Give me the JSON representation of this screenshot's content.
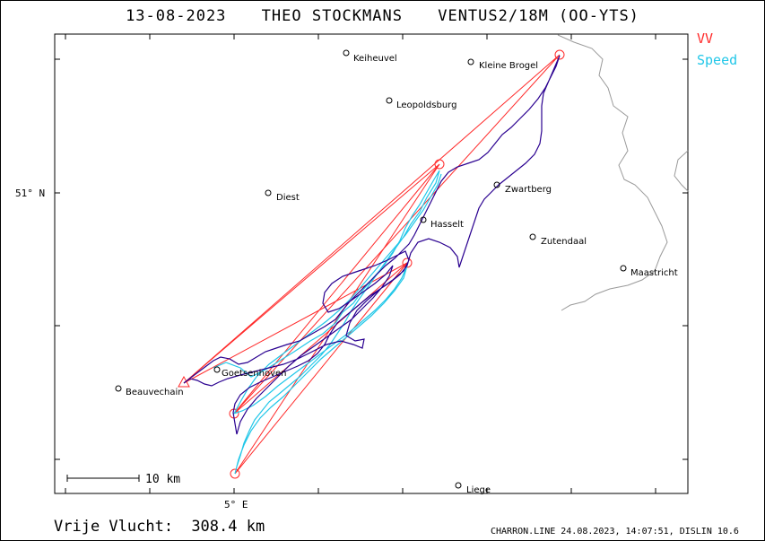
{
  "header": {
    "date": "13-08-2023",
    "pilot": "THEO STOCKMANS",
    "glider": "VENTUS2/18M (OO-YTS)"
  },
  "legend": {
    "vv_label": "VV",
    "vv_color": "#ff2a2a",
    "speed_label": "Speed",
    "speed_color": "#22c7e8",
    "track_color": "#2a0090"
  },
  "map": {
    "lat_label": "51° N",
    "lon_label": "5° E",
    "scale_label": "10  km",
    "places": [
      {
        "name": "Keiheuvel"
      },
      {
        "name": "Kleine Brogel"
      },
      {
        "name": "Leopoldsburg"
      },
      {
        "name": "Diest"
      },
      {
        "name": "Zwartberg"
      },
      {
        "name": "Hasselt"
      },
      {
        "name": "Zutendaal"
      },
      {
        "name": "Maastricht"
      },
      {
        "name": "Goetsenhoven"
      },
      {
        "name": "Beauvechain"
      },
      {
        "name": "Liege"
      }
    ]
  },
  "footer": {
    "distance_label": "Vrije Vlucht:",
    "distance_value": "308.4 km",
    "credit": "CHARRON.LINE 24.08.2023, 14:07:51, DISLIN 10.6"
  }
}
